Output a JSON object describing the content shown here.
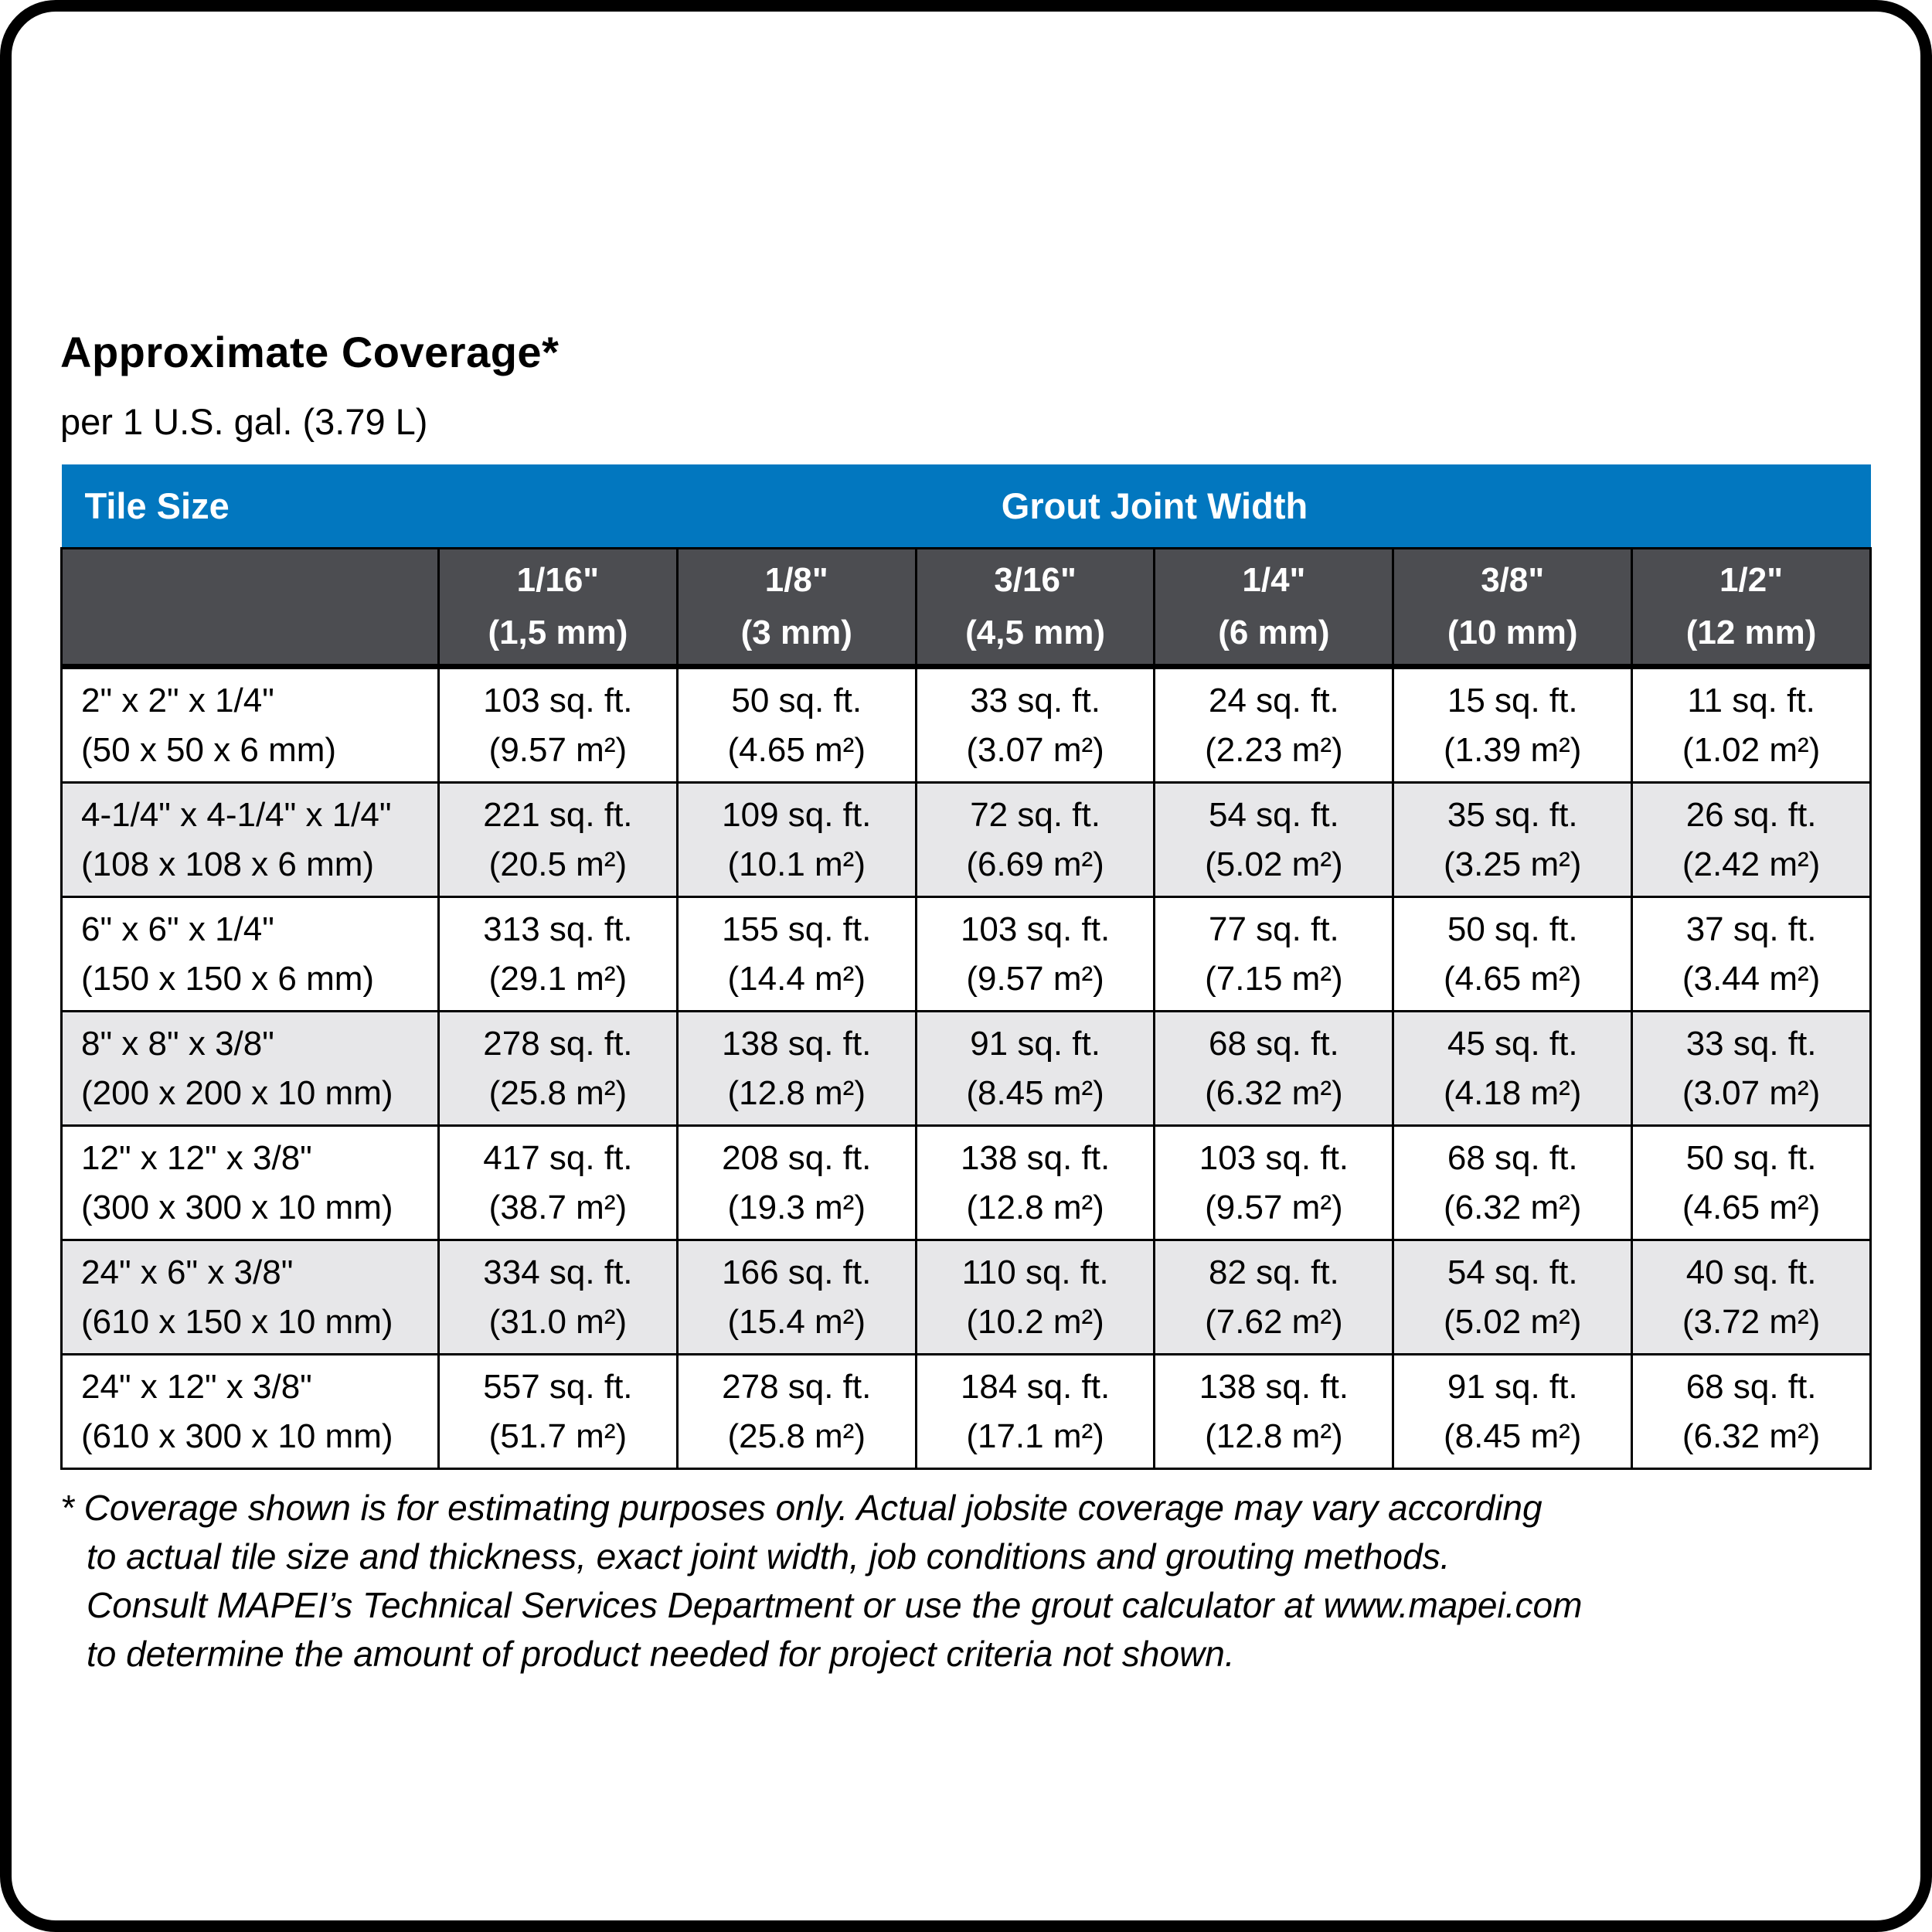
{
  "page": {
    "title": "Approximate Coverage*",
    "subtitle": "per 1 U.S. gal. (3.79 L)"
  },
  "table": {
    "header": {
      "tile_size": "Tile Size",
      "grout_joint_width": "Grout Joint Width"
    },
    "columns": [
      {
        "inch": "1/16\"",
        "mm": "(1,5 mm)"
      },
      {
        "inch": "1/8\"",
        "mm": "(3 mm)"
      },
      {
        "inch": "3/16\"",
        "mm": "(4,5 mm)"
      },
      {
        "inch": "1/4\"",
        "mm": "(6 mm)"
      },
      {
        "inch": "3/8\"",
        "mm": "(10 mm)"
      },
      {
        "inch": "1/2\"",
        "mm": "(12 mm)"
      }
    ],
    "rows": [
      {
        "tile_in": "2\" x 2\" x 1/4\"",
        "tile_mm": "(50 x 50 x 6 mm)",
        "cells": [
          {
            "ft": "103 sq. ft.",
            "m2": "(9.57 m²)"
          },
          {
            "ft": "50 sq. ft.",
            "m2": "(4.65 m²)"
          },
          {
            "ft": "33 sq. ft.",
            "m2": "(3.07 m²)"
          },
          {
            "ft": "24 sq. ft.",
            "m2": "(2.23 m²)"
          },
          {
            "ft": "15 sq. ft.",
            "m2": "(1.39 m²)"
          },
          {
            "ft": "11 sq. ft.",
            "m2": "(1.02 m²)"
          }
        ]
      },
      {
        "tile_in": "4-1/4\" x 4-1/4\" x 1/4\"",
        "tile_mm": "(108 x 108 x 6 mm)",
        "cells": [
          {
            "ft": "221 sq. ft.",
            "m2": "(20.5 m²)"
          },
          {
            "ft": "109 sq. ft.",
            "m2": "(10.1 m²)"
          },
          {
            "ft": "72 sq. ft.",
            "m2": "(6.69 m²)"
          },
          {
            "ft": "54 sq. ft.",
            "m2": "(5.02 m²)"
          },
          {
            "ft": "35 sq. ft.",
            "m2": "(3.25 m²)"
          },
          {
            "ft": "26 sq. ft.",
            "m2": "(2.42 m²)"
          }
        ]
      },
      {
        "tile_in": "6\" x 6\" x 1/4\"",
        "tile_mm": "(150 x 150 x 6 mm)",
        "cells": [
          {
            "ft": "313 sq. ft.",
            "m2": "(29.1 m²)"
          },
          {
            "ft": "155 sq. ft.",
            "m2": "(14.4 m²)"
          },
          {
            "ft": "103 sq. ft.",
            "m2": "(9.57 m²)"
          },
          {
            "ft": "77 sq. ft.",
            "m2": "(7.15 m²)"
          },
          {
            "ft": "50 sq. ft.",
            "m2": "(4.65 m²)"
          },
          {
            "ft": "37 sq. ft.",
            "m2": "(3.44 m²)"
          }
        ]
      },
      {
        "tile_in": "8\" x 8\" x 3/8\"",
        "tile_mm": "(200 x 200 x 10 mm)",
        "cells": [
          {
            "ft": "278 sq. ft.",
            "m2": "(25.8 m²)"
          },
          {
            "ft": "138 sq. ft.",
            "m2": "(12.8 m²)"
          },
          {
            "ft": "91 sq. ft.",
            "m2": "(8.45 m²)"
          },
          {
            "ft": "68 sq. ft.",
            "m2": "(6.32 m²)"
          },
          {
            "ft": "45 sq. ft.",
            "m2": "(4.18 m²)"
          },
          {
            "ft": "33 sq. ft.",
            "m2": "(3.07 m²)"
          }
        ]
      },
      {
        "tile_in": "12\" x 12\" x 3/8\"",
        "tile_mm": "(300 x 300 x 10 mm)",
        "cells": [
          {
            "ft": "417 sq. ft.",
            "m2": "(38.7 m²)"
          },
          {
            "ft": "208 sq. ft.",
            "m2": "(19.3 m²)"
          },
          {
            "ft": "138 sq. ft.",
            "m2": "(12.8 m²)"
          },
          {
            "ft": "103 sq. ft.",
            "m2": "(9.57 m²)"
          },
          {
            "ft": "68 sq. ft.",
            "m2": "(6.32 m²)"
          },
          {
            "ft": "50 sq. ft.",
            "m2": "(4.65 m²)"
          }
        ]
      },
      {
        "tile_in": "24\" x 6\" x 3/8\"",
        "tile_mm": "(610 x 150 x 10 mm)",
        "cells": [
          {
            "ft": "334 sq. ft.",
            "m2": "(31.0 m²)"
          },
          {
            "ft": "166 sq. ft.",
            "m2": "(15.4 m²)"
          },
          {
            "ft": "110 sq. ft.",
            "m2": "(10.2 m²)"
          },
          {
            "ft": "82 sq. ft.",
            "m2": "(7.62 m²)"
          },
          {
            "ft": "54 sq. ft.",
            "m2": "(5.02 m²)"
          },
          {
            "ft": "40 sq. ft.",
            "m2": "(3.72 m²)"
          }
        ]
      },
      {
        "tile_in": "24\" x 12\" x 3/8\"",
        "tile_mm": "(610 x 300 x 10 mm)",
        "cells": [
          {
            "ft": "557 sq. ft.",
            "m2": "(51.7 m²)"
          },
          {
            "ft": "278 sq. ft.",
            "m2": "(25.8 m²)"
          },
          {
            "ft": "184 sq. ft.",
            "m2": "(17.1 m²)"
          },
          {
            "ft": "138 sq. ft.",
            "m2": "(12.8 m²)"
          },
          {
            "ft": "91 sq. ft.",
            "m2": "(8.45 m²)"
          },
          {
            "ft": "68 sq. ft.",
            "m2": "(6.32 m²)"
          }
        ]
      }
    ]
  },
  "footnote_lines": [
    "* Coverage shown is for estimating purposes only. Actual jobsite coverage may vary according",
    "to actual tile size and thickness, exact joint width, job conditions and grouting methods.",
    "Consult MAPEI’s Technical Services Department or use the grout calculator at www.mapei.com",
    "to determine the amount of product needed for project criteria not shown."
  ],
  "colors": {
    "header_blue": "#0277bf",
    "subheader_gray": "#4c4d51",
    "row_alt_gray": "#e7e7e9"
  }
}
